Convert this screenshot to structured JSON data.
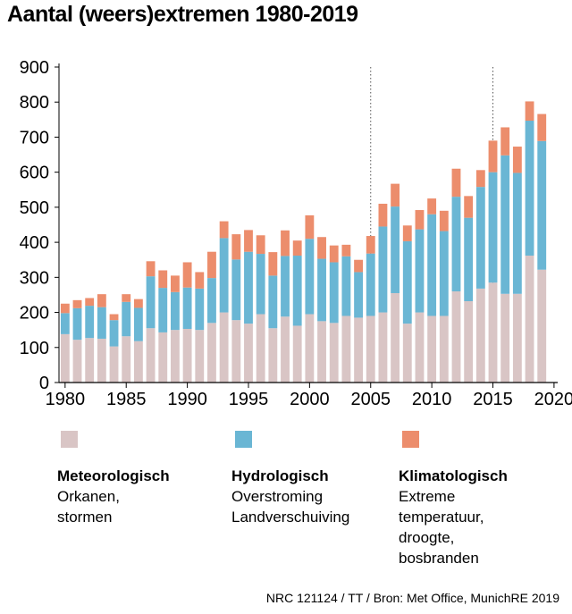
{
  "chart_data": {
    "type": "bar",
    "stacked": true,
    "title": "Aantal (weers)extremen 1980-2019",
    "x": [
      1980,
      1981,
      1982,
      1983,
      1984,
      1985,
      1986,
      1987,
      1988,
      1989,
      1990,
      1991,
      1992,
      1993,
      1994,
      1995,
      1996,
      1997,
      1998,
      1999,
      2000,
      2001,
      2002,
      2003,
      2004,
      2005,
      2006,
      2007,
      2008,
      2009,
      2010,
      2011,
      2012,
      2013,
      2014,
      2015,
      2016,
      2017,
      2018,
      2019
    ],
    "series": [
      {
        "name": "Meteorologisch",
        "color": "#d9c5c5",
        "values": [
          138,
          122,
          127,
          125,
          103,
          132,
          118,
          155,
          143,
          150,
          153,
          150,
          170,
          200,
          178,
          168,
          195,
          155,
          188,
          162,
          195,
          175,
          170,
          190,
          185,
          190,
          200,
          255,
          168,
          200,
          190,
          190,
          260,
          232,
          268,
          285,
          253,
          253,
          362,
          322
        ]
      },
      {
        "name": "Hydrologisch",
        "color": "#6ab6d4",
        "values": [
          60,
          90,
          92,
          90,
          75,
          98,
          95,
          148,
          127,
          108,
          118,
          118,
          128,
          212,
          173,
          205,
          172,
          150,
          173,
          200,
          215,
          178,
          173,
          170,
          130,
          178,
          245,
          247,
          235,
          237,
          290,
          242,
          270,
          238,
          290,
          315,
          395,
          345,
          385,
          367
        ]
      },
      {
        "name": "Klimatologisch",
        "color": "#ec8d6c",
        "values": [
          27,
          23,
          22,
          37,
          17,
          22,
          25,
          43,
          50,
          47,
          72,
          47,
          75,
          48,
          72,
          62,
          53,
          67,
          73,
          43,
          67,
          62,
          48,
          33,
          35,
          50,
          65,
          65,
          45,
          55,
          45,
          58,
          80,
          62,
          48,
          90,
          80,
          75,
          55,
          77
        ]
      }
    ],
    "xticks": [
      1980,
      1985,
      1990,
      1995,
      2000,
      2005,
      2010,
      2015,
      2020
    ],
    "yticks": [
      0,
      100,
      200,
      300,
      400,
      500,
      600,
      700,
      800,
      900
    ],
    "ylim": [
      0,
      900
    ],
    "xlim": [
      1979.5,
      2020.3
    ],
    "grid": "vertical lines at 2005 and 2015"
  },
  "legend": [
    {
      "name": "Meteorologisch",
      "desc": "Orkanen,\nstormen",
      "color": "#d9c5c5"
    },
    {
      "name": "Hydrologisch",
      "desc": "Overstroming\nLandverschuiving",
      "color": "#6ab6d4"
    },
    {
      "name": "Klimatologisch",
      "desc": "Extreme\ntemperatuur,\ndroogte,\nbosbranden",
      "color": "#ec8d6c"
    }
  ],
  "source": "NRC 121124 / TT / Bron: Met Office, MunichRE 2019"
}
